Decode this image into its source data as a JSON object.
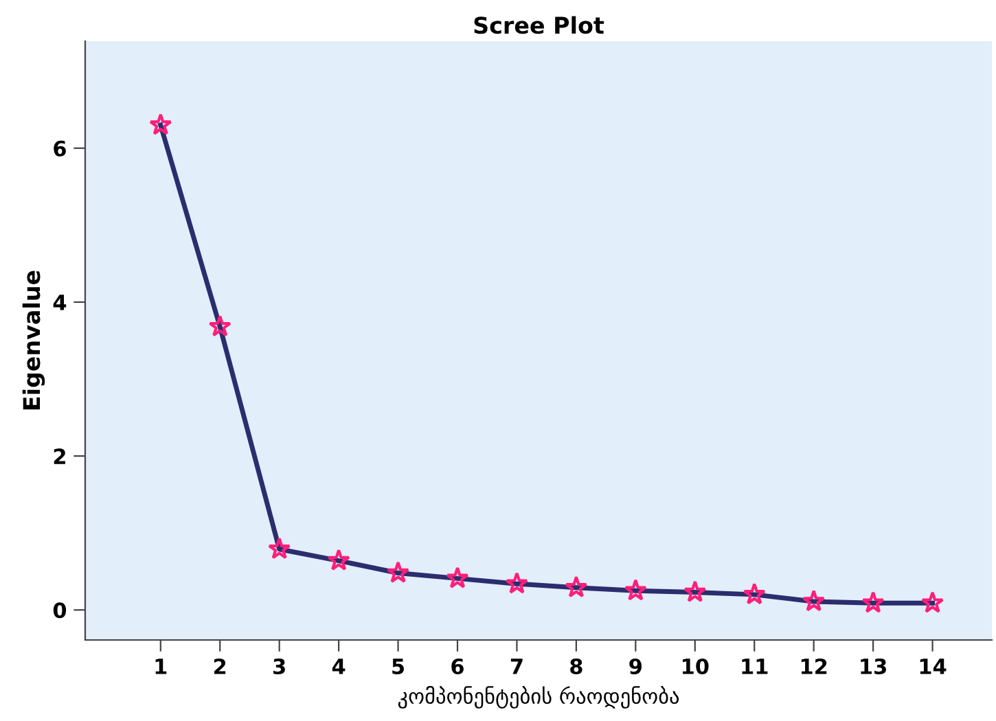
{
  "chart_data": {
    "type": "line",
    "title": "Scree Plot",
    "xlabel": "კომპონენტების რაოდენობა",
    "ylabel": "Eigenvalue",
    "x": [
      1,
      2,
      3,
      4,
      5,
      6,
      7,
      8,
      9,
      10,
      11,
      12,
      13,
      14
    ],
    "series": [
      {
        "color": "#2b2d6e",
        "colors": [
          "#ff1f7a",
          "#ff1f7a",
          "#ff1f7a",
          "#ff1f7a",
          "#ff1f7a",
          "#ff1f7a",
          "#ff1f7a",
          "#ff1f7a",
          "#ff1f7a",
          "#ff1f7a",
          "#ff1f7a",
          "#ff1f7a",
          "#ff1f7a",
          "#ff1f7a"
        ],
        "values": [
          6.3,
          3.68,
          0.79,
          0.64,
          0.48,
          0.41,
          0.34,
          0.29,
          0.25,
          0.23,
          0.2,
          0.11,
          0.09,
          0.09
        ]
      }
    ],
    "xlim": [
      -0.27,
      15.0
    ],
    "ylim": [
      -0.39,
      7.39
    ],
    "xticks": [
      1,
      2,
      3,
      4,
      5,
      6,
      7,
      8,
      9,
      10,
      11,
      12,
      13,
      14
    ],
    "yticks": [
      0,
      2,
      4,
      6
    ],
    "marker": "star",
    "line_style": "solid",
    "grid": false,
    "legend": false
  }
}
